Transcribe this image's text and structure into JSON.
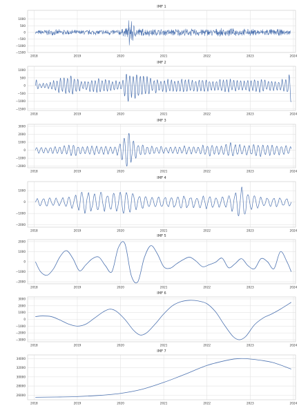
{
  "chart_data": [
    {
      "type": "line",
      "title": "IMF 1",
      "xlabel": "",
      "ylabel": "",
      "xlim": [
        2017.85,
        2024.05
      ],
      "ylim": [
        -1500,
        1650
      ],
      "xticks": [
        2018,
        2019,
        2020,
        2021,
        2022,
        2023,
        2024
      ],
      "xtick_labels": [
        "2018",
        "2019",
        "2020",
        "2021",
        "2022",
        "2023",
        "2024"
      ],
      "yticks": [
        1000,
        500,
        0,
        -500,
        -1000,
        -1500
      ],
      "ytick_labels": [
        "1000",
        "500",
        "0",
        "−500",
        "−1000",
        "−1500"
      ],
      "grid": true,
      "legend": "none",
      "series": [
        {
          "color": "#4c72b0",
          "x": [
            2018.03,
            2018.2,
            2018.45,
            2018.7,
            2018.95,
            2019.2,
            2019.45,
            2019.7,
            2019.9,
            2020.0,
            2020.1,
            2020.18,
            2020.2,
            2020.23,
            2020.27,
            2020.35,
            2020.5,
            2020.75,
            2021.0,
            2021.3,
            2021.6,
            2021.9,
            2022.2,
            2022.5,
            2022.8,
            2023.1,
            2023.4,
            2023.7,
            2023.93
          ],
          "amplitude": [
            120,
            270,
            220,
            250,
            200,
            230,
            220,
            260,
            250,
            290,
            330,
            650,
            1500,
            1300,
            1000,
            450,
            330,
            300,
            280,
            320,
            300,
            330,
            300,
            330,
            300,
            280,
            300,
            270,
            200
          ],
          "approx_points": 900
        }
      ]
    },
    {
      "type": "line",
      "title": "IMF 2",
      "xlabel": "",
      "ylabel": "",
      "xlim": [
        2017.85,
        2024.05
      ],
      "ylim": [
        -1600,
        1250
      ],
      "xticks": [
        2018,
        2019,
        2020,
        2021,
        2022,
        2023,
        2024
      ],
      "xtick_labels": [
        "2018",
        "2019",
        "2020",
        "2021",
        "2022",
        "2023",
        "2024"
      ],
      "yticks": [
        1000,
        500,
        0,
        -500,
        -1000,
        -1500
      ],
      "ytick_labels": [
        "1000",
        "500",
        "0",
        "−500",
        "−1000",
        "−1500"
      ],
      "grid": true,
      "legend": "none",
      "series": [
        {
          "color": "#4c72b0",
          "x": [
            2018.03,
            2018.05,
            2018.1,
            2018.3,
            2018.55,
            2018.8,
            2018.95,
            2019.1,
            2019.35,
            2019.6,
            2019.85,
            2020.05,
            2020.12,
            2020.15,
            2020.2,
            2020.27,
            2020.4,
            2020.55,
            2020.75,
            2021.0,
            2021.3,
            2021.6,
            2021.9,
            2022.2,
            2022.5,
            2022.8,
            2023.1,
            2023.4,
            2023.7,
            2023.9,
            2023.95
          ],
          "amplitude": [
            600,
            500,
            200,
            180,
            450,
            700,
            550,
            300,
            450,
            500,
            350,
            300,
            1000,
            1300,
            1100,
            800,
            1100,
            700,
            500,
            450,
            450,
            420,
            460,
            400,
            500,
            380,
            460,
            400,
            350,
            700,
            1400
          ],
          "approx_points": 480
        }
      ]
    },
    {
      "type": "line",
      "title": "IMF 3",
      "xlabel": "",
      "ylabel": "",
      "xlim": [
        2017.85,
        2024.05
      ],
      "ylim": [
        -2200,
        3250
      ],
      "xticks": [
        2018,
        2019,
        2020,
        2021,
        2022,
        2023,
        2024
      ],
      "xtick_labels": [
        "2018",
        "2019",
        "2020",
        "2021",
        "2022",
        "2023",
        "2024"
      ],
      "yticks": [
        3000,
        2000,
        1000,
        0,
        -1000,
        -2000
      ],
      "ytick_labels": [
        "3000",
        "2000",
        "1000",
        "0",
        "−1000",
        "−2000"
      ],
      "grid": true,
      "legend": "none",
      "series": [
        {
          "color": "#4c72b0",
          "x": [
            2018.03,
            2018.3,
            2018.6,
            2018.9,
            2019.2,
            2019.5,
            2019.8,
            2019.95,
            2020.05,
            2020.12,
            2020.18,
            2020.22,
            2020.28,
            2020.4,
            2020.6,
            2020.85,
            2021.1,
            2021.4,
            2021.7,
            2022.0,
            2022.3,
            2022.6,
            2022.9,
            2023.2,
            2023.5,
            2023.8,
            2023.95
          ],
          "amplitude": [
            500,
            450,
            500,
            750,
            500,
            650,
            450,
            700,
            1500,
            2500,
            2900,
            2000,
            1500,
            900,
            700,
            600,
            450,
            600,
            500,
            800,
            700,
            1000,
            650,
            900,
            650,
            700,
            450
          ],
          "approx_points": 360
        }
      ]
    },
    {
      "type": "line",
      "title": "IMF 4",
      "xlabel": "",
      "ylabel": "",
      "xlim": [
        2017.85,
        2024.05
      ],
      "ylim": [
        -2200,
        1800
      ],
      "xticks": [
        2018,
        2019,
        2020,
        2021,
        2022,
        2023,
        2024
      ],
      "xtick_labels": [
        "2018",
        "2019",
        "2020",
        "2021",
        "2022",
        "2023",
        "2024"
      ],
      "yticks": [
        1000,
        0,
        -1000,
        -2000
      ],
      "ytick_labels": [
        "1000",
        "0",
        "−1000",
        "−2000"
      ],
      "grid": true,
      "legend": "none",
      "series": [
        {
          "color": "#4c72b0",
          "x": [
            2018.03,
            2018.3,
            2018.6,
            2018.9,
            2019.15,
            2019.4,
            2019.65,
            2019.9,
            2020.0,
            2020.15,
            2020.3,
            2020.5,
            2020.7,
            2020.95,
            2021.2,
            2021.45,
            2021.7,
            2022.0,
            2022.3,
            2022.55,
            2022.75,
            2022.85,
            2023.0,
            2023.2,
            2023.45,
            2023.7,
            2023.95
          ],
          "amplitude": [
            350,
            400,
            350,
            700,
            1100,
            900,
            900,
            1000,
            1400,
            1200,
            900,
            700,
            500,
            550,
            600,
            700,
            550,
            600,
            500,
            700,
            1500,
            1800,
            800,
            500,
            500,
            500,
            350
          ],
          "approx_points": 260
        }
      ]
    },
    {
      "type": "line",
      "title": "IMF 5",
      "xlabel": "",
      "ylabel": "",
      "xlim": [
        2017.85,
        2024.05
      ],
      "ylim": [
        -2200,
        2200
      ],
      "xticks": [
        2018,
        2019,
        2020,
        2021,
        2022,
        2023,
        2024
      ],
      "xtick_labels": [
        "2018",
        "2019",
        "2020",
        "2021",
        "2022",
        "2023",
        "2024"
      ],
      "yticks": [
        2000,
        1000,
        0,
        -1000,
        -2000
      ],
      "ytick_labels": [
        "2000",
        "1000",
        "0",
        "−1000",
        "−2000"
      ],
      "grid": true,
      "legend": "none",
      "series": [
        {
          "color": "#4c72b0",
          "x": [
            2018.03,
            2018.15,
            2018.3,
            2018.45,
            2018.6,
            2018.75,
            2018.9,
            2019.05,
            2019.2,
            2019.35,
            2019.5,
            2019.65,
            2019.8,
            2019.95,
            2020.1,
            2020.25,
            2020.4,
            2020.55,
            2020.7,
            2020.85,
            2021.0,
            2021.15,
            2021.3,
            2021.45,
            2021.6,
            2021.75,
            2021.9,
            2022.05,
            2022.2,
            2022.35,
            2022.5,
            2022.65,
            2022.8,
            2022.95,
            2023.1,
            2023.25,
            2023.4,
            2023.55,
            2023.7,
            2023.85,
            2023.95
          ],
          "y": [
            0,
            -1000,
            -1350,
            -700,
            500,
            1100,
            300,
            -900,
            -300,
            300,
            450,
            -400,
            -1000,
            1400,
            1800,
            -1400,
            -2000,
            400,
            1600,
            800,
            -500,
            -650,
            -200,
            200,
            450,
            50,
            -500,
            -300,
            -50,
            350,
            -600,
            -200,
            300,
            -400,
            -700,
            300,
            0,
            -700,
            1000,
            0,
            -1000
          ],
          "approx_points": 200
        }
      ]
    },
    {
      "type": "line",
      "title": "IMF 6",
      "xlabel": "",
      "ylabel": "",
      "xlim": [
        2017.85,
        2024.05
      ],
      "ylim": [
        -3300,
        3300
      ],
      "xticks": [
        2018,
        2019,
        2020,
        2021,
        2022,
        2023,
        2024
      ],
      "xtick_labels": [
        "2018",
        "2019",
        "2020",
        "2021",
        "2022",
        "2023",
        "2024"
      ],
      "yticks": [
        3000,
        2000,
        1000,
        0,
        -1000,
        -2000,
        -3000
      ],
      "ytick_labels": [
        "3000",
        "2000",
        "1000",
        "0",
        "−1000",
        "−2000",
        "−3000"
      ],
      "grid": true,
      "legend": "none",
      "series": [
        {
          "color": "#4c72b0",
          "x": [
            2018.03,
            2018.2,
            2018.4,
            2018.6,
            2018.8,
            2019.0,
            2019.2,
            2019.4,
            2019.6,
            2019.75,
            2019.9,
            2020.1,
            2020.3,
            2020.45,
            2020.6,
            2020.8,
            2021.0,
            2021.2,
            2021.4,
            2021.6,
            2021.8,
            2022.0,
            2022.2,
            2022.4,
            2022.6,
            2022.75,
            2022.9,
            2023.1,
            2023.3,
            2023.5,
            2023.7,
            2023.95
          ],
          "y": [
            400,
            500,
            400,
            -100,
            -700,
            -1000,
            -700,
            200,
            1100,
            1500,
            1200,
            0,
            -1600,
            -2300,
            -2000,
            -700,
            800,
            2000,
            2600,
            2800,
            2700,
            2300,
            1100,
            -800,
            -2500,
            -3000,
            -2500,
            -800,
            200,
            800,
            1500,
            2500
          ],
          "approx_points": 160
        }
      ]
    },
    {
      "type": "line",
      "title": "IMF 7",
      "xlabel": "",
      "ylabel": "",
      "xlim": [
        2017.85,
        2024.05
      ],
      "ylim": [
        25000,
        34800
      ],
      "xticks": [
        2018,
        2019,
        2020,
        2021,
        2022,
        2023,
        2024
      ],
      "xtick_labels": [
        "2018",
        "2019",
        "2020",
        "2021",
        "2022",
        "2023",
        "2024"
      ],
      "yticks": [
        34000,
        32000,
        30000,
        28000,
        26000
      ],
      "ytick_labels": [
        "34000",
        "32000",
        "30000",
        "28000",
        "26000"
      ],
      "grid": true,
      "legend": "none",
      "series": [
        {
          "color": "#4c72b0",
          "x": [
            2018.03,
            2018.5,
            2019.0,
            2019.5,
            2020.0,
            2020.5,
            2021.0,
            2021.5,
            2022.0,
            2022.5,
            2022.75,
            2023.0,
            2023.5,
            2023.95
          ],
          "y": [
            25550,
            25600,
            25700,
            25950,
            26400,
            27300,
            28800,
            30600,
            32500,
            33700,
            34000,
            33900,
            33200,
            31700
          ],
          "approx_points": 140
        }
      ]
    }
  ]
}
